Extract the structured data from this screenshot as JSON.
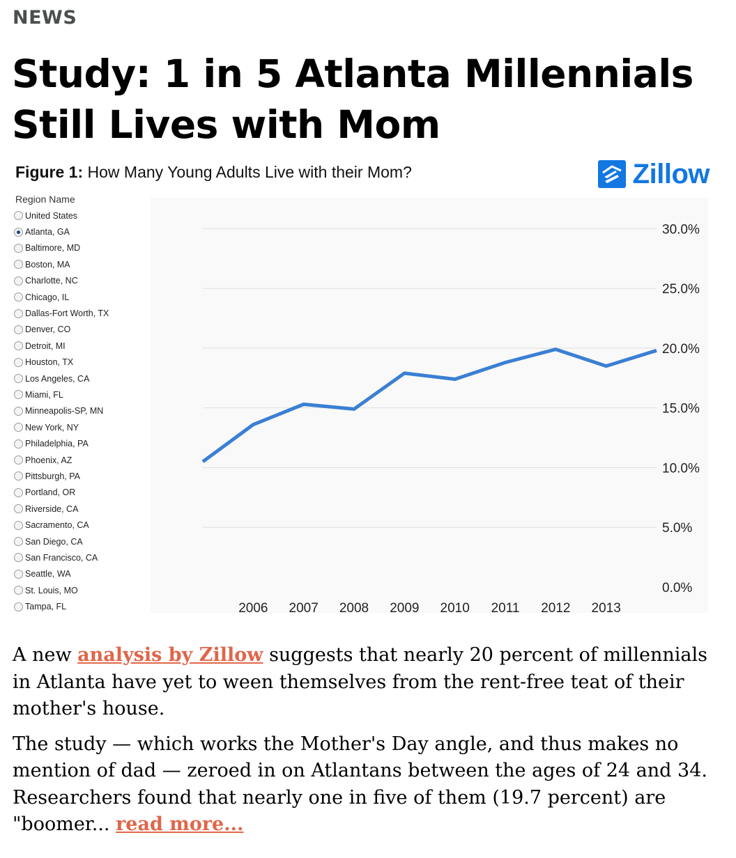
{
  "section": "NEWS",
  "headline": "Study: 1 in 5 Atlanta Millennials Still Lives with Mom",
  "figure": {
    "title_bold": "Figure 1:",
    "title_rest": " How Many Young Adults Live with their Mom?",
    "logo_text": "Zillow",
    "brand_color": "#1277e1",
    "region_heading": "Region Name",
    "regions": [
      "United States",
      "Atlanta, GA",
      "Baltimore, MD",
      "Boston, MA",
      "Charlotte, NC",
      "Chicago, IL",
      "Dallas-Fort Worth, TX",
      "Denver, CO",
      "Detroit, MI",
      "Houston, TX",
      "Los Angeles, CA",
      "Miami, FL",
      "Minneapolis-SP, MN",
      "New York, NY",
      "Philadelphia, PA",
      "Phoenix, AZ",
      "Pittsburgh, PA",
      "Portland, OR",
      "Riverside, CA",
      "Sacramento, CA",
      "San Diego, CA",
      "San Francisco, CA",
      "Seattle, WA",
      "St. Louis, MO",
      "Tampa, FL"
    ],
    "selected_region": "Atlanta, GA"
  },
  "chart_data": {
    "type": "line",
    "title": "How Many Young Adults Live with their Mom?",
    "x_tick_labels": [
      "2006",
      "2007",
      "2008",
      "2009",
      "2010",
      "2011",
      "2012",
      "2013"
    ],
    "y_tick_labels": [
      "0.0%",
      "5.0%",
      "10.0%",
      "15.0%",
      "20.0%",
      "25.0%",
      "30.0%"
    ],
    "ylim": [
      0,
      32
    ],
    "x": [
      2005.0,
      2006.0,
      2007.0,
      2008.0,
      2009.0,
      2010.0,
      2011.0,
      2012.0,
      2013.0,
      2014.0
    ],
    "series": [
      {
        "values": [
          10.5,
          13.6,
          15.3,
          14.9,
          17.9,
          17.4,
          18.8,
          19.9,
          18.5,
          19.8
        ],
        "color": "#3a7fd4"
      }
    ],
    "grid": true,
    "y_axis_side": "right"
  },
  "article": {
    "p1_before": "A new ",
    "p1_link": "analysis by Zillow",
    "p1_after": " suggests that nearly 20 percent of millennials in Atlanta have yet to ween themselves from the rent-free teat of their mother's house.",
    "p2_text": "The study — which works the Mother's Day angle, and thus makes no mention of dad — zeroed in on Atlantans between the ages of 24 and 34. Researchers found that nearly one in five of them (19.7 percent) are \"boomer... ",
    "read_more": "read more...",
    "link_color": "#e0664a"
  }
}
